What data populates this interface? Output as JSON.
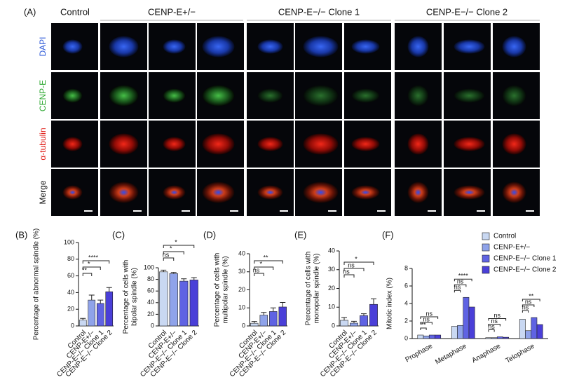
{
  "panel_a": {
    "label": "(A)",
    "columns": [
      "Control",
      "CENP-E+/−",
      "CENP-E−/− Clone 1",
      "CENP-E−/− Clone 2"
    ],
    "rows": [
      "DAPI",
      "CENP-E",
      "α-tubulin",
      "Merge"
    ]
  },
  "chart_data": [
    {
      "type": "bar",
      "panel_label": "(B)",
      "y_label": [
        "Percentage of abnormal spindle (%)"
      ],
      "categories": [
        "Control",
        "CENP-E+/−",
        "CENP-E−/− Clone 1",
        "CENP-E−/− Clone 2"
      ],
      "values": [
        7,
        31,
        27,
        41
      ],
      "errors": [
        2,
        6,
        4,
        5
      ],
      "colors": [
        "#c9d8f2",
        "#8fa3ea",
        "#5f63e3",
        "#4a3fd8"
      ],
      "significance": [
        "**",
        "*",
        "****"
      ],
      "ylim": [
        0,
        100
      ],
      "yticks": [
        0,
        20,
        40,
        60,
        80,
        100
      ]
    },
    {
      "type": "bar",
      "panel_label": "(C)",
      "y_label": [
        "Percentage of cells with",
        "bipolar spindle (%)"
      ],
      "categories": [
        "Control",
        "CENP-E+/−",
        "CENP-E−/− Clone 1",
        "CENP-E−/− Clone 2"
      ],
      "values": [
        93,
        90,
        77,
        79
      ],
      "errors": [
        3,
        2,
        4,
        4
      ],
      "colors": [
        "#c9d8f2",
        "#8fa3ea",
        "#5f63e3",
        "#4a3fd8"
      ],
      "significance": [
        "ns",
        "*",
        "*"
      ],
      "ylim": [
        0,
        100
      ],
      "yticks": [
        0,
        20,
        40,
        60,
        80,
        100
      ]
    },
    {
      "type": "bar",
      "panel_label": "(D)",
      "y_label": [
        "Percentage of cells with",
        "multipolar spindle (%)"
      ],
      "categories": [
        "Control",
        "CENP-E+/−",
        "CENP-E−/− Clone 1",
        "CENP-E−/− Clone 2"
      ],
      "values": [
        1.5,
        6,
        8,
        10.5
      ],
      "errors": [
        1,
        1.5,
        2,
        2.5
      ],
      "colors": [
        "#c9d8f2",
        "#8fa3ea",
        "#5f63e3",
        "#4a3fd8"
      ],
      "significance": [
        "ns",
        "*",
        "**"
      ],
      "ylim": [
        0,
        40
      ],
      "yticks": [
        0,
        10,
        20,
        30,
        40
      ]
    },
    {
      "type": "bar",
      "panel_label": "(E)",
      "y_label": [
        "Percentage of cells with",
        "monopolar spindle (%)"
      ],
      "categories": [
        "Control",
        "CENP-E+/−",
        "CENP-E−/− Clone 1",
        "CENP-E−/− Clone 2"
      ],
      "values": [
        3,
        1.5,
        5.5,
        11.5
      ],
      "errors": [
        1.5,
        1,
        1,
        3
      ],
      "colors": [
        "#c9d8f2",
        "#8fa3ea",
        "#5f63e3",
        "#4a3fd8"
      ],
      "significance": [
        "ns",
        "ns",
        "*"
      ],
      "ylim": [
        0,
        40
      ],
      "yticks": [
        0,
        10,
        20,
        30,
        40
      ]
    },
    {
      "type": "grouped_bar",
      "panel_label": "(F)",
      "y_label": [
        "Mitotic index (%)"
      ],
      "categories": [
        "Prophase",
        "Metaphase",
        "Anaphase",
        "Telophase"
      ],
      "series": [
        {
          "name": "Control",
          "color": "#c9d8f2",
          "values": [
            0.4,
            1.4,
            0.1,
            2.2
          ]
        },
        {
          "name": "CENP-E+/−",
          "color": "#8fa3ea",
          "values": [
            0.3,
            1.5,
            0.1,
            0.9
          ]
        },
        {
          "name": "CENP-E−/− Clone 1",
          "color": "#5f63e3",
          "values": [
            0.4,
            4.7,
            0.2,
            2.4
          ]
        },
        {
          "name": "CENP-E−/− Clone 2",
          "color": "#4a3fd8",
          "values": [
            0.4,
            3.6,
            0.15,
            1.6
          ]
        }
      ],
      "significance": [
        [
          "**",
          "ns",
          "ns"
        ],
        [
          "ns",
          "ns",
          "****"
        ],
        [
          "ns",
          "ns",
          "ns"
        ],
        [
          "ns",
          "ns",
          "**"
        ]
      ],
      "ylim": [
        0,
        8
      ],
      "yticks": [
        0,
        2,
        4,
        6,
        8
      ]
    }
  ]
}
